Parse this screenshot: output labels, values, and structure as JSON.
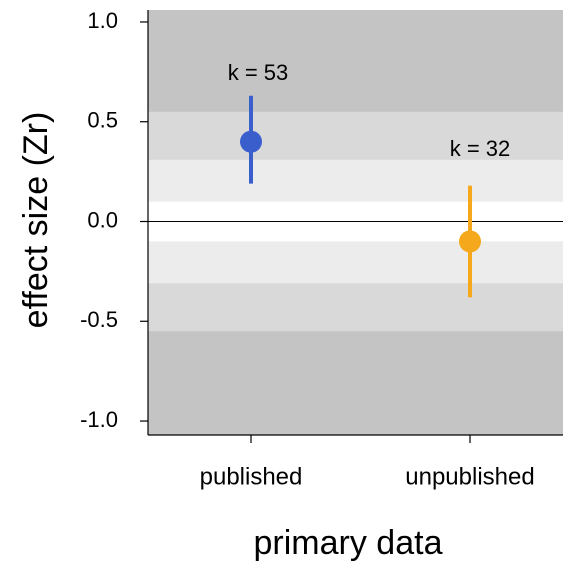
{
  "chart_data": {
    "type": "pointrange",
    "x_label": "primary data",
    "y_label": "effect size (Zr)",
    "categories": [
      "published",
      "unpublished"
    ],
    "values": [
      0.4,
      -0.1
    ],
    "lower": [
      0.19,
      -0.38
    ],
    "upper": [
      0.63,
      0.18
    ],
    "colors": [
      "#3a5fcd",
      "#f5a81c"
    ],
    "annotations": [
      "k = 53",
      "k = 32"
    ],
    "ylim": [
      -1.07,
      1.06
    ],
    "yticks": [
      {
        "value": 1,
        "label": "1.0"
      },
      {
        "value": 0.5,
        "label": "0.5"
      },
      {
        "value": 0,
        "label": "0.0"
      },
      {
        "value": -0.5,
        "label": "-0.5"
      },
      {
        "value": -1,
        "label": "-1.0"
      }
    ],
    "background": "#c4c4c4",
    "bands": [
      {
        "from": 0.31,
        "to": 0.55,
        "color": "#d9d9d9"
      },
      {
        "from": -0.55,
        "to": -0.31,
        "color": "#d9d9d9"
      },
      {
        "from": 0.1,
        "to": 0.31,
        "color": "#ececec"
      },
      {
        "from": -0.31,
        "to": -0.1,
        "color": "#ececec"
      },
      {
        "from": -0.1,
        "to": 0.1,
        "color": "#ffffff"
      }
    ],
    "hline": 0
  }
}
